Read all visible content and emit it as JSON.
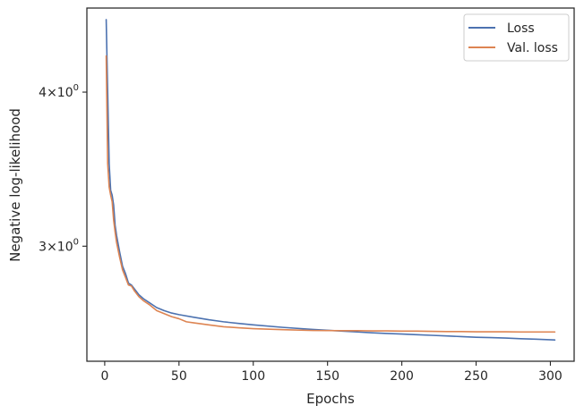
{
  "chart_data": {
    "type": "line",
    "xlabel": "Epochs",
    "ylabel": "Negative log-likelihood",
    "xlim": [
      -12,
      316
    ],
    "ylim": [
      2.42,
      4.68
    ],
    "yscale": "log",
    "grid": false,
    "legend_position": "top-right",
    "x_ticks": [
      0,
      50,
      100,
      150,
      200,
      250,
      300
    ],
    "y_ticks": [
      {
        "value": 3.0,
        "base": "3",
        "exp": "0",
        "times": "×",
        "ten": "10"
      },
      {
        "value": 4.0,
        "base": "4",
        "exp": "0",
        "times": "×",
        "ten": "10"
      }
    ],
    "series": [
      {
        "name": "Loss",
        "color": "#4c72b0",
        "x": [
          1,
          2,
          3,
          4,
          5,
          6,
          7,
          8,
          10,
          12,
          14,
          16,
          18,
          20,
          23,
          26,
          30,
          35,
          40,
          45,
          50,
          60,
          70,
          80,
          90,
          100,
          120,
          140,
          160,
          170,
          180,
          190,
          200,
          210,
          220,
          230,
          240,
          250,
          260,
          270,
          280,
          290,
          303
        ],
        "y": [
          4.58,
          4.0,
          3.5,
          3.33,
          3.3,
          3.24,
          3.12,
          3.06,
          2.97,
          2.89,
          2.85,
          2.8,
          2.79,
          2.77,
          2.74,
          2.72,
          2.7,
          2.675,
          2.66,
          2.648,
          2.64,
          2.627,
          2.615,
          2.605,
          2.597,
          2.59,
          2.578,
          2.568,
          2.56,
          2.556,
          2.552,
          2.549,
          2.546,
          2.543,
          2.54,
          2.537,
          2.534,
          2.531,
          2.529,
          2.527,
          2.524,
          2.522,
          2.518
        ]
      },
      {
        "name": "Val. loss",
        "color": "#dd8452",
        "x": [
          1,
          2,
          3,
          4,
          5,
          6,
          7,
          8,
          10,
          12,
          14,
          16,
          18,
          20,
          23,
          26,
          30,
          35,
          40,
          45,
          50,
          55,
          60,
          70,
          80,
          90,
          100,
          120,
          140,
          160,
          170,
          180,
          190,
          200,
          210,
          220,
          230,
          240,
          250,
          260,
          270,
          280,
          290,
          303
        ],
        "y": [
          4.28,
          3.5,
          3.35,
          3.3,
          3.26,
          3.15,
          3.08,
          3.02,
          2.94,
          2.87,
          2.83,
          2.79,
          2.785,
          2.76,
          2.73,
          2.71,
          2.69,
          2.66,
          2.645,
          2.63,
          2.62,
          2.605,
          2.6,
          2.59,
          2.581,
          2.576,
          2.572,
          2.567,
          2.563,
          2.562,
          2.562,
          2.561,
          2.561,
          2.56,
          2.56,
          2.559,
          2.558,
          2.558,
          2.557,
          2.557,
          2.557,
          2.556,
          2.556,
          2.556
        ]
      }
    ]
  }
}
